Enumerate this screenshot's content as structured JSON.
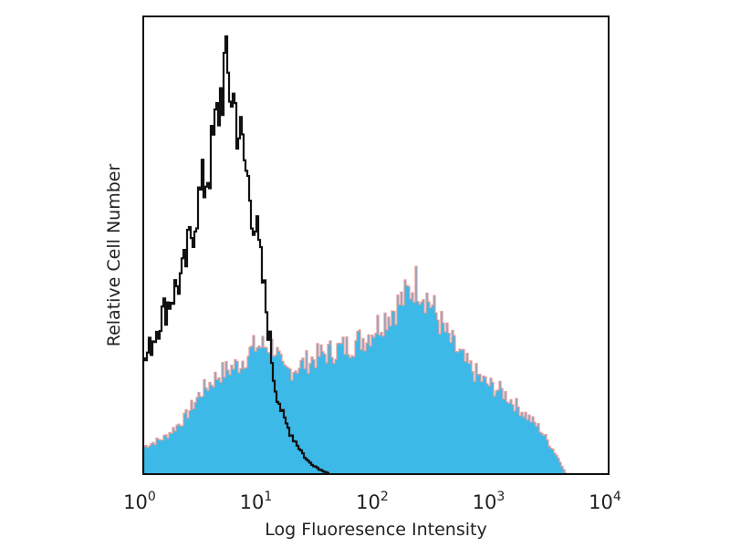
{
  "chart_data": {
    "type": "area",
    "title": "",
    "xlabel": "Log Fluoresence Intensity",
    "ylabel": "Relative Cell Number",
    "xscale": "log",
    "xlim": [
      1,
      10000
    ],
    "ylim": [
      0,
      100
    ],
    "grid": false,
    "x_ticks": [
      {
        "base": "10",
        "exp": "0"
      },
      {
        "base": "10",
        "exp": "1"
      },
      {
        "base": "10",
        "exp": "2"
      },
      {
        "base": "10",
        "exp": "3"
      },
      {
        "base": "10",
        "exp": "4"
      }
    ],
    "series": [
      {
        "style": "filled",
        "color": "#3db9e8",
        "edge_color": "#e59a98",
        "x": [
          1,
          1.5,
          2.2,
          3.1,
          4.5,
          6.5,
          9.1,
          13.2,
          15.8,
          22.9,
          32.4,
          56.2,
          81.3,
          115,
          166,
          219,
          282,
          407,
          589,
          851,
          1202,
          1738,
          2512,
          3548,
          4266
        ],
        "y": [
          6,
          8,
          12,
          18,
          22,
          24,
          28,
          28,
          22,
          24,
          26,
          28,
          30,
          34,
          38,
          42,
          38,
          30,
          24,
          20,
          18,
          14,
          10,
          4,
          0
        ]
      },
      {
        "style": "line",
        "color": "#111111",
        "x": [
          1,
          1.38,
          2.19,
          2.82,
          3.72,
          4.9,
          5.89,
          7.08,
          9.12,
          11.0,
          13.2,
          15.8,
          19.1,
          25.1,
          32.4,
          39.8
        ],
        "y": [
          24,
          34,
          44,
          58,
          68,
          88,
          82,
          70,
          54,
          38,
          20,
          12,
          8,
          3,
          1,
          0
        ]
      }
    ]
  }
}
